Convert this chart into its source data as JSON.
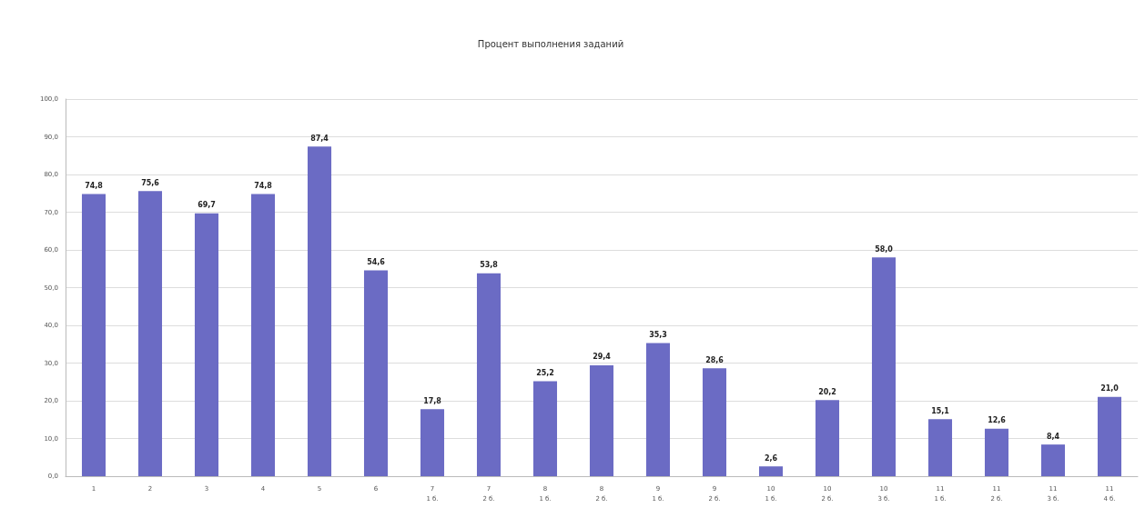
{
  "chart_data": {
    "type": "bar",
    "title": "Процент выполнения заданий",
    "categories": [
      "1",
      "2",
      "3",
      "4",
      "5",
      "6",
      "7\n1 б.",
      "7\n2 б.",
      "8\n1 б.",
      "8\n2 б.",
      "9\n1 б.",
      "9\n2 б.",
      "10\n1 б.",
      "10\n2 б.",
      "10\n3 б.",
      "11\n1 б.",
      "11\n2 б.",
      "11\n3 б.",
      "11\n4 б."
    ],
    "values": [
      74.8,
      75.6,
      69.7,
      74.8,
      87.4,
      54.6,
      17.8,
      53.8,
      25.2,
      29.4,
      35.3,
      28.6,
      2.6,
      20.2,
      58.0,
      15.1,
      12.6,
      8.4,
      21.0
    ],
    "value_labels": [
      "74,8",
      "75,6",
      "69,7",
      "74,8",
      "87,4",
      "54,6",
      "17,8",
      "53,8",
      "25,2",
      "29,4",
      "35,3",
      "28,6",
      "2,6",
      "20,2",
      "58,0",
      "15,1",
      "12,6",
      "8,4",
      "21,0"
    ],
    "color": "#6b6bc4",
    "ylim": [
      0,
      100
    ],
    "yticks": [
      {
        "value": 0,
        "label": "0,0"
      },
      {
        "value": 10,
        "label": "10,0"
      },
      {
        "value": 20,
        "label": "20,0"
      },
      {
        "value": 30,
        "label": "30,0"
      },
      {
        "value": 40,
        "label": "40,0"
      },
      {
        "value": 50,
        "label": "50,0"
      },
      {
        "value": 60,
        "label": "60,0"
      },
      {
        "value": 70,
        "label": "70,0"
      },
      {
        "value": 80,
        "label": "80,0"
      },
      {
        "value": 90,
        "label": "90,0"
      },
      {
        "value": 100,
        "label": "100,0"
      }
    ],
    "grid": "y"
  }
}
